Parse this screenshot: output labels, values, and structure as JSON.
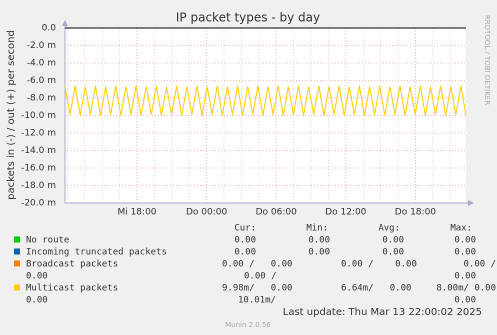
{
  "chart_data": {
    "type": "line",
    "title": "IP packet types - by day",
    "y_label": "packets in (-) / out (+) per second",
    "side_label": "RRDTOOL / TOBI OETIKER",
    "xticks": [
      "Mi 18:00",
      "Do 00:00",
      "Do 06:00",
      "Do 12:00",
      "Do 18:00"
    ],
    "ylim": [
      -20,
      0
    ],
    "yticks": [
      {
        "value": 0,
        "label": "0.0"
      },
      {
        "value": -2,
        "label": "-2.0 m"
      },
      {
        "value": -4,
        "label": "-4.0 m"
      },
      {
        "value": -6,
        "label": "-6.0 m"
      },
      {
        "value": -8,
        "label": "-8.0 m"
      },
      {
        "value": -10,
        "label": "-10.0 m"
      },
      {
        "value": -12,
        "label": "-12.0 m"
      },
      {
        "value": -14,
        "label": "-14.0 m"
      },
      {
        "value": -16,
        "label": "-16.0 m"
      },
      {
        "value": -18,
        "label": "-18.0 m"
      },
      {
        "value": -20,
        "label": "-20.0 m"
      }
    ],
    "grid": true,
    "series": [
      {
        "name": "No route",
        "color": "#00cc00",
        "values": [
          0,
          0,
          0,
          0,
          0,
          0,
          0,
          0,
          0,
          0,
          0,
          0,
          0,
          0,
          0,
          0,
          0,
          0,
          0,
          0,
          0,
          0,
          0,
          0,
          0,
          0,
          0,
          0,
          0,
          0,
          0,
          0,
          0,
          0,
          0,
          0,
          0,
          0,
          0,
          0,
          0,
          0,
          0,
          0,
          0,
          0,
          0,
          0,
          0,
          0,
          0,
          0,
          0,
          0,
          0,
          0,
          0,
          0,
          0,
          0,
          0,
          0,
          0,
          0,
          0,
          0,
          0,
          0,
          0,
          0,
          0,
          0,
          0,
          0,
          0,
          0,
          0,
          0,
          0,
          0
        ]
      },
      {
        "name": "Incoming truncated packets",
        "color": "#0066b3",
        "values": [
          0,
          0,
          0,
          0,
          0,
          0,
          0,
          0,
          0,
          0,
          0,
          0,
          0,
          0,
          0,
          0,
          0,
          0,
          0,
          0,
          0,
          0,
          0,
          0,
          0,
          0,
          0,
          0,
          0,
          0,
          0,
          0,
          0,
          0,
          0,
          0,
          0,
          0,
          0,
          0,
          0,
          0,
          0,
          0,
          0,
          0,
          0,
          0,
          0,
          0,
          0,
          0,
          0,
          0,
          0,
          0,
          0,
          0,
          0,
          0,
          0,
          0,
          0,
          0,
          0,
          0,
          0,
          0,
          0,
          0,
          0,
          0,
          0,
          0,
          0,
          0,
          0,
          0,
          0,
          0
        ]
      },
      {
        "name": "Broadcast packets",
        "color": "#ff8000",
        "values": [
          0,
          0,
          0,
          0,
          0,
          0,
          0,
          0,
          0,
          0,
          0,
          0,
          0,
          0,
          0,
          0,
          0,
          0,
          0,
          0,
          0,
          0,
          0,
          0,
          0,
          0,
          0,
          0,
          0,
          0,
          0,
          0,
          0,
          0,
          0,
          0,
          0,
          0,
          0,
          0,
          0,
          0,
          0,
          0,
          0,
          0,
          0,
          0,
          0,
          0,
          0,
          0,
          0,
          0,
          0,
          0,
          0,
          0,
          0,
          0,
          0,
          0,
          0,
          0,
          0,
          0,
          0,
          0,
          0,
          0,
          0,
          0,
          0,
          0,
          0,
          0,
          0,
          0,
          0,
          0
        ]
      },
      {
        "name": "Multicast packets",
        "color": "#ffcc00",
        "values": [
          -6.7,
          -9.9,
          -6.6,
          -10.0,
          -6.7,
          -9.9,
          -6.6,
          -10.0,
          -6.7,
          -9.9,
          -6.6,
          -10.0,
          -6.7,
          -9.9,
          -6.6,
          -10.0,
          -6.7,
          -9.9,
          -6.6,
          -10.0,
          -6.7,
          -9.9,
          -6.6,
          -10.0,
          -6.7,
          -9.9,
          -6.6,
          -10.0,
          -6.7,
          -9.9,
          -6.6,
          -10.0,
          -6.7,
          -9.9,
          -6.6,
          -10.0,
          -6.7,
          -9.9,
          -6.6,
          -10.0,
          -6.7,
          -9.9,
          -6.6,
          -10.0,
          -6.7,
          -9.9,
          -6.6,
          -10.0,
          -6.7,
          -9.9,
          -6.6,
          -10.0,
          -6.7,
          -9.9,
          -6.6,
          -10.0,
          -6.7,
          -9.9,
          -6.6,
          -10.0,
          -6.7,
          -9.9,
          -6.6,
          -10.0,
          -6.7,
          -9.9,
          -6.6,
          -10.0,
          -6.7,
          -9.9,
          -6.6,
          -10.0,
          -6.7,
          -9.9,
          -6.6,
          -10.0,
          -6.7,
          -9.9,
          -6.6,
          -10.0
        ]
      }
    ],
    "legend": {
      "header": [
        "Cur:",
        "Min:",
        "Avg:",
        "Max:"
      ],
      "rows": [
        {
          "lines": [
            [
              "0.00",
              "0.00",
              "0.00",
              "0.00"
            ]
          ]
        },
        {
          "lines": [
            [
              "0.00",
              "0.00",
              "0.00",
              "0.00"
            ]
          ]
        },
        {
          "lines": [
            [
              "0.00 /   0.00",
              "0.00 /    0.00",
              "0.00 /"
            ],
            [
              "0.00",
              "0.00 /",
              "0.00"
            ]
          ]
        },
        {
          "lines": [
            [
              "9.98m/   0.00",
              "6.64m/   0.00",
              "8.00m/ 0.00"
            ],
            [
              "0.00",
              "10.01m/",
              "0.00"
            ]
          ]
        }
      ]
    },
    "last_update": "Last update: Thu Mar 13 22:00:02 2025",
    "footer": "Munin 2.0.56"
  }
}
